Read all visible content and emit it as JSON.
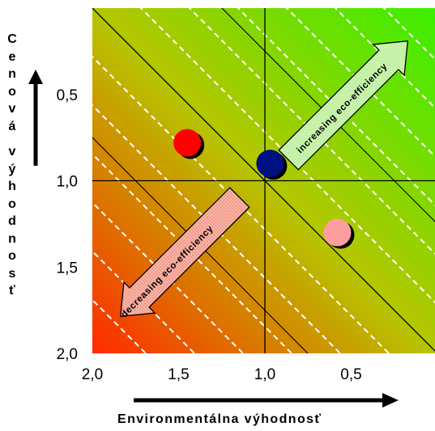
{
  "chart_data": {
    "type": "scatter",
    "title": "",
    "xlabel": "Environmentálna výhodnosť",
    "ylabel": "Cenová výhodnosť",
    "x_axis": {
      "ticks": [
        "2,0",
        "1,5",
        "1,0",
        "0,5"
      ],
      "tick_values": [
        2.0,
        1.5,
        1.0,
        0.5
      ],
      "range": [
        2.0,
        0.0
      ],
      "reversed": true
    },
    "y_axis": {
      "ticks": [
        "0,5",
        "1,0",
        "1,5",
        "2,0"
      ],
      "tick_values": [
        0.5,
        1.0,
        1.5,
        2.0
      ],
      "range": [
        0.0,
        2.0
      ],
      "reversed": true
    },
    "reference_lines": {
      "x": 1.0,
      "y": 1.0
    },
    "diagonals": {
      "style": "dashed white",
      "direction": "perpendicular to eco-efficiency arrows"
    },
    "background_gradient": {
      "low_efficiency_color": "#ff2a00",
      "high_efficiency_color": "#3af000"
    },
    "points": [
      {
        "x": 1.45,
        "y": 0.78,
        "color": "#ff0000"
      },
      {
        "x": 0.97,
        "y": 0.9,
        "color": "#001080"
      },
      {
        "x": 0.58,
        "y": 1.3,
        "color": "#ff9e9e"
      }
    ],
    "annotations": [
      {
        "text": "increasing eco-efficiency",
        "arrow": "up-right",
        "color": "#bff0a0"
      },
      {
        "text": "decreasing eco-efficiency",
        "arrow": "down-left",
        "color": "#f4a090"
      }
    ]
  }
}
